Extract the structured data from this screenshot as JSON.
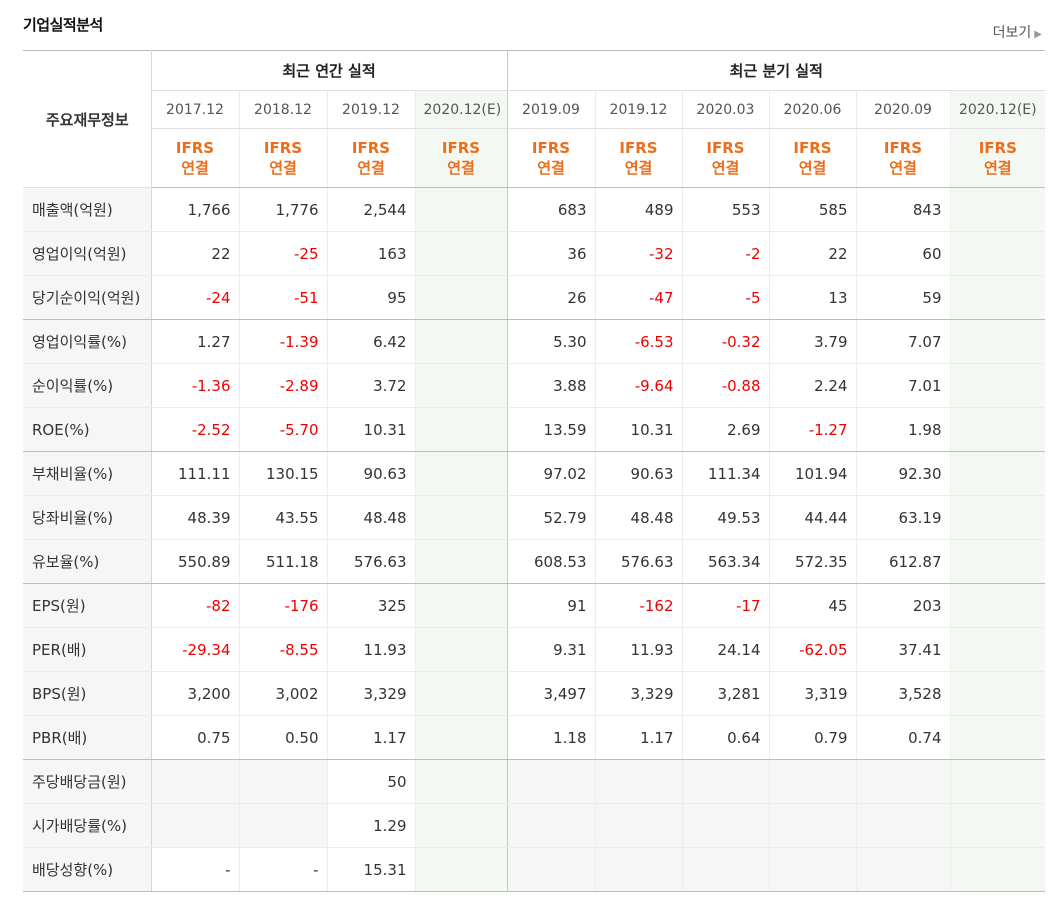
{
  "header": {
    "title": "기업실적분석",
    "more_label": "더보기"
  },
  "table": {
    "row_header_label": "주요재무정보",
    "annual_group_label": "최근 연간 실적",
    "quarter_group_label": "최근 분기 실적",
    "periods": [
      "2017.12",
      "2018.12",
      "2019.12",
      "2020.12(E)",
      "2019.09",
      "2019.12",
      "2020.03",
      "2020.06",
      "2020.09",
      "2020.12(E)"
    ],
    "ifrs_top": "IFRS",
    "ifrs_bottom": "연결",
    "rows": [
      {
        "label": "매출액(억원)",
        "values": [
          "1,766",
          "1,776",
          "2,544",
          "",
          "683",
          "489",
          "553",
          "585",
          "843",
          ""
        ]
      },
      {
        "label": "영업이익(억원)",
        "values": [
          "22",
          "-25",
          "163",
          "",
          "36",
          "-32",
          "-2",
          "22",
          "60",
          ""
        ]
      },
      {
        "label": "당기순이익(억원)",
        "values": [
          "-24",
          "-51",
          "95",
          "",
          "26",
          "-47",
          "-5",
          "13",
          "59",
          ""
        ]
      },
      {
        "label": "영업이익률(%)",
        "values": [
          "1.27",
          "-1.39",
          "6.42",
          "",
          "5.30",
          "-6.53",
          "-0.32",
          "3.79",
          "7.07",
          ""
        ]
      },
      {
        "label": "순이익률(%)",
        "values": [
          "-1.36",
          "-2.89",
          "3.72",
          "",
          "3.88",
          "-9.64",
          "-0.88",
          "2.24",
          "7.01",
          ""
        ]
      },
      {
        "label": "ROE(%)",
        "values": [
          "-2.52",
          "-5.70",
          "10.31",
          "",
          "13.59",
          "10.31",
          "2.69",
          "-1.27",
          "1.98",
          ""
        ]
      },
      {
        "label": "부채비율(%)",
        "values": [
          "111.11",
          "130.15",
          "90.63",
          "",
          "97.02",
          "90.63",
          "111.34",
          "101.94",
          "92.30",
          ""
        ]
      },
      {
        "label": "당좌비율(%)",
        "values": [
          "48.39",
          "43.55",
          "48.48",
          "",
          "52.79",
          "48.48",
          "49.53",
          "44.44",
          "63.19",
          ""
        ]
      },
      {
        "label": "유보율(%)",
        "values": [
          "550.89",
          "511.18",
          "576.63",
          "",
          "608.53",
          "576.63",
          "563.34",
          "572.35",
          "612.87",
          ""
        ]
      },
      {
        "label": "EPS(원)",
        "values": [
          "-82",
          "-176",
          "325",
          "",
          "91",
          "-162",
          "-17",
          "45",
          "203",
          ""
        ]
      },
      {
        "label": "PER(배)",
        "values": [
          "-29.34",
          "-8.55",
          "11.93",
          "",
          "9.31",
          "11.93",
          "24.14",
          "-62.05",
          "37.41",
          ""
        ]
      },
      {
        "label": "BPS(원)",
        "values": [
          "3,200",
          "3,002",
          "3,329",
          "",
          "3,497",
          "3,329",
          "3,281",
          "3,319",
          "3,528",
          ""
        ]
      },
      {
        "label": "PBR(배)",
        "values": [
          "0.75",
          "0.50",
          "1.17",
          "",
          "1.18",
          "1.17",
          "0.64",
          "0.79",
          "0.74",
          ""
        ]
      },
      {
        "label": "주당배당금(원)",
        "values": [
          "",
          "",
          "50",
          "",
          "",
          "",
          "",
          "",
          "",
          ""
        ]
      },
      {
        "label": "시가배당률(%)",
        "values": [
          "",
          "",
          "1.29",
          "",
          "",
          "",
          "",
          "",
          "",
          ""
        ]
      },
      {
        "label": "배당성향(%)",
        "values": [
          "-",
          "-",
          "15.31",
          "",
          "",
          "",
          "",
          "",
          "",
          ""
        ]
      }
    ]
  }
}
